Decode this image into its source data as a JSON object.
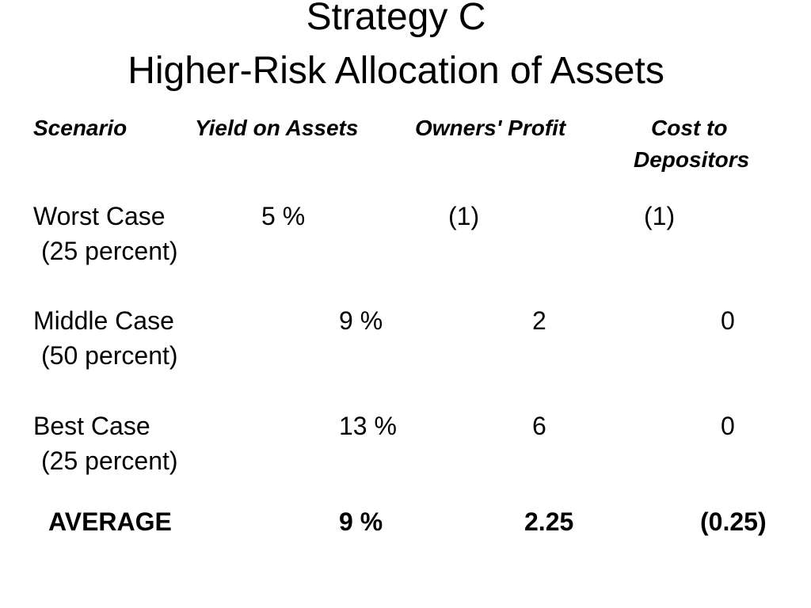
{
  "title": {
    "line1": "Strategy C",
    "line2": "Higher-Risk Allocation of Assets"
  },
  "headers": {
    "scenario": "Scenario",
    "yield": "Yield on Assets",
    "owners_profit": "Owners' Profit",
    "cost_line1": "Cost to",
    "cost_line2": "Depositors"
  },
  "rows": [
    {
      "scenario": "Worst Case",
      "probability": "(25 percent)",
      "yield": "5 %",
      "owners_profit": "(1)",
      "cost": "(1)"
    },
    {
      "scenario": "Middle Case",
      "probability": "(50 percent)",
      "yield": "9 %",
      "owners_profit": "2",
      "cost": "0"
    },
    {
      "scenario": "Best Case",
      "probability": "(25 percent)",
      "yield": "13 %",
      "owners_profit": "6",
      "cost": "0"
    }
  ],
  "average": {
    "label": "AVERAGE",
    "yield": "9 %",
    "owners_profit": "2.25",
    "cost": "(0.25)"
  }
}
